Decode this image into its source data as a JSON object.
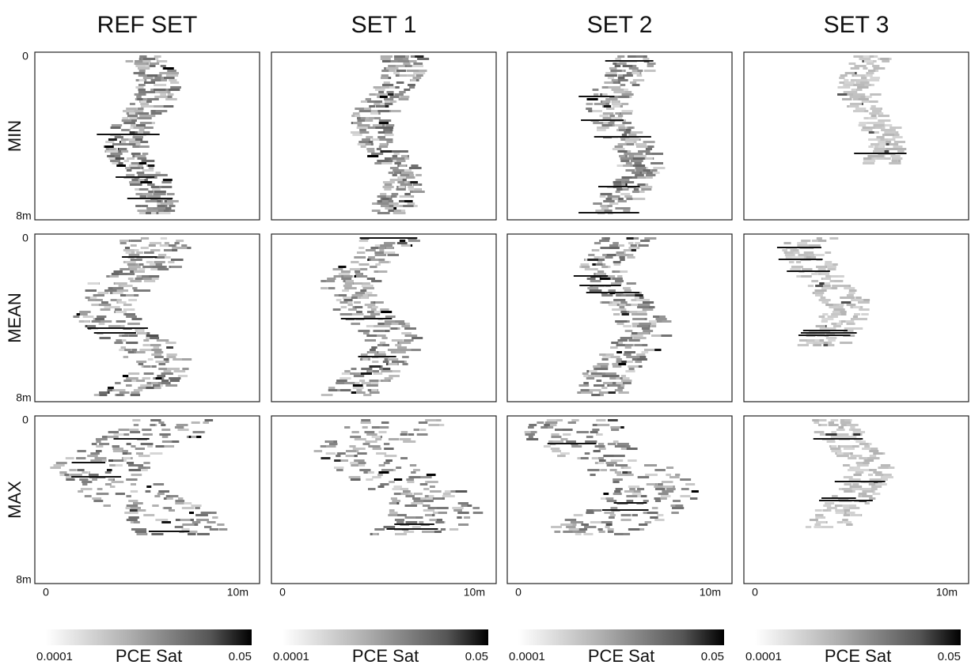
{
  "columns": [
    "REF SET",
    "SET 1",
    "SET 2",
    "SET 3"
  ],
  "rows": [
    "MIN",
    "MEAN",
    "MAX"
  ],
  "depth_axis": {
    "top": "0",
    "bottom": "8m"
  },
  "width_axis": {
    "left": "0",
    "right": "10m"
  },
  "colorbar": {
    "min": "0.0001",
    "label": "PCE Sat",
    "max": "0.05"
  }
}
